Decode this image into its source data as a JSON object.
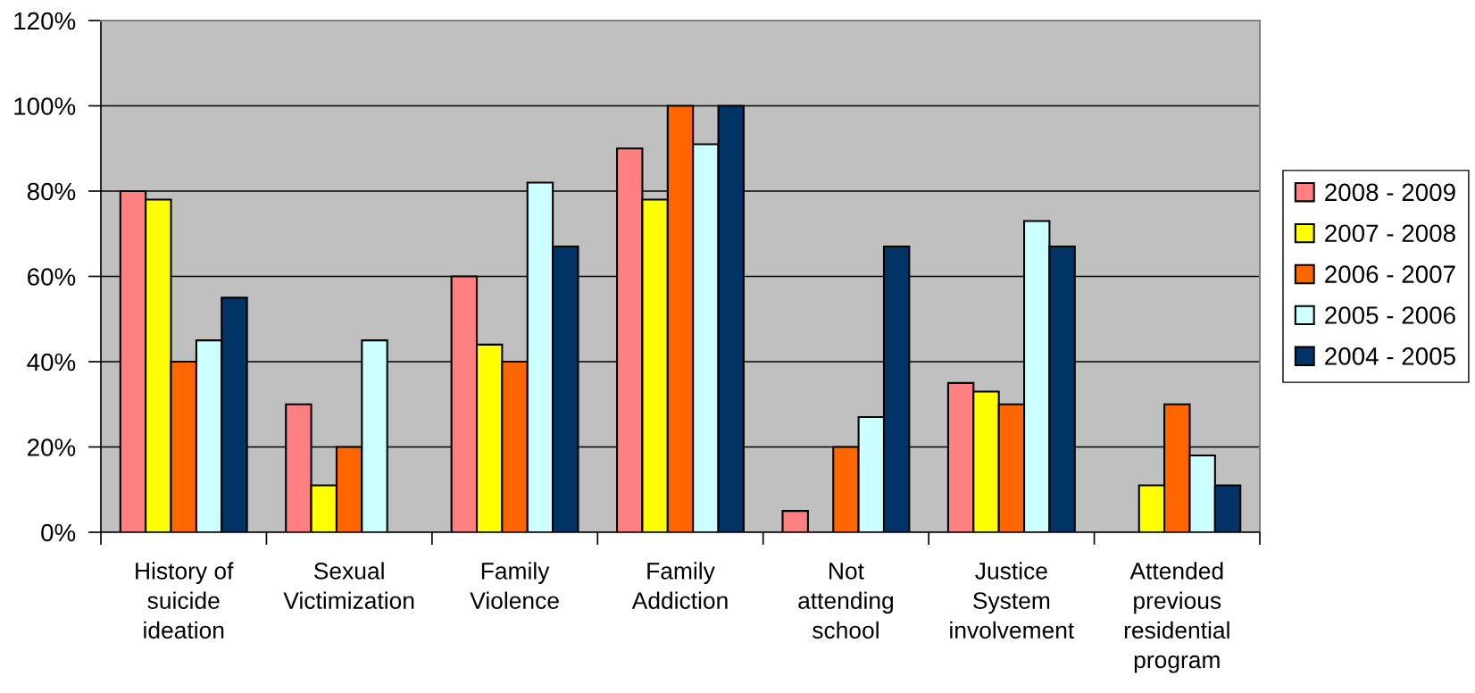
{
  "chart_data": {
    "type": "bar",
    "categories": [
      "History of\nsuicide\nideation",
      "Sexual\nVictimization",
      "Family\nViolence",
      "Family\nAddiction",
      "Not\nattending\nschool",
      "Justice\nSystem\ninvolvement",
      "Attended\nprevious\nresidential\nprogram"
    ],
    "series": [
      {
        "name": "2008 - 2009",
        "color": "#ff8080",
        "values": [
          80,
          30,
          60,
          90,
          5,
          35,
          null
        ]
      },
      {
        "name": "2007 - 2008",
        "color": "#ffff00",
        "values": [
          78,
          11,
          44,
          78,
          null,
          33,
          11
        ]
      },
      {
        "name": "2006 - 2007",
        "color": "#ff6600",
        "values": [
          40,
          20,
          40,
          100,
          20,
          30,
          30
        ]
      },
      {
        "name": "2005 - 2006",
        "color": "#ccffff",
        "values": [
          45,
          45,
          82,
          91,
          27,
          73,
          18
        ]
      },
      {
        "name": "2004 - 2005",
        "color": "#003366",
        "values": [
          55,
          null,
          67,
          100,
          67,
          67,
          11
        ]
      }
    ],
    "ylim": [
      0,
      120
    ],
    "yticks": [
      {
        "value": 0,
        "label": "0%"
      },
      {
        "value": 20,
        "label": "20%"
      },
      {
        "value": 40,
        "label": "40%"
      },
      {
        "value": 60,
        "label": "60%"
      },
      {
        "value": 80,
        "label": "80%"
      },
      {
        "value": 100,
        "label": "100%"
      },
      {
        "value": 120,
        "label": "120%"
      }
    ],
    "grid": "y",
    "legend": "right"
  }
}
